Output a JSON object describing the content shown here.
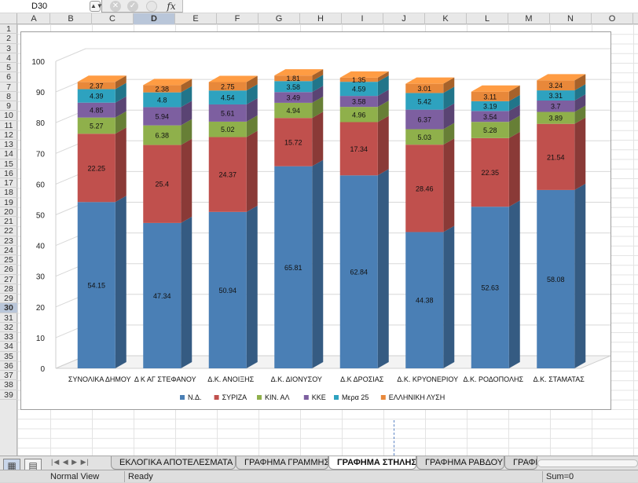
{
  "formula_bar": {
    "cell_ref": "D30",
    "fx_label": "fx",
    "cancel_icon": "x-circle-icon",
    "confirm_icon": "check-circle-icon",
    "formula_value": ""
  },
  "column_headers": [
    "A",
    "B",
    "C",
    "D",
    "E",
    "F",
    "G",
    "H",
    "I",
    "J",
    "K",
    "L",
    "M",
    "N",
    "O"
  ],
  "selected_column": "D",
  "selected_row": 30,
  "row_count": 39,
  "sheet_tabs": [
    {
      "label": "ΕΚΛΟΓΙΚΑ ΑΠΟΤΕΛΕΣΜΑΤΑ",
      "active": false
    },
    {
      "label": "ΓΡΑΦΗΜΑ ΓΡΑΜΜΗΣ",
      "active": false
    },
    {
      "label": "ΓΡΑΦΗΜΑ ΣΤΗΛΗΣ",
      "active": true
    },
    {
      "label": "ΓΡΑΦΗΜΑ ΡΑΒΔΟΥ",
      "active": false
    },
    {
      "label": "ΓΡΑΦΗ",
      "active": false
    }
  ],
  "tab_nav_glyphs": "|◀ ◀ ▶ ▶|",
  "status_bar": {
    "view": "Normal View",
    "state": "Ready",
    "sum": "Sum=0"
  },
  "chart_data": {
    "type": "bar",
    "stacked": true,
    "three_d": true,
    "categories": [
      "ΣΥΝΟΛΙΚΑ ΔΗΜΟΥ",
      "Δ Κ ΑΓ ΣΤΕΦΑΝΟΥ",
      "Δ.Κ. ΑΝΟΙΞΗΣ",
      "Δ.Κ. ΔΙΟΝΥΣΟΥ",
      "Δ.Κ ΔΡΟΣΙΑΣ",
      "Δ.Κ. ΚΡΥΟΝΕΡΙΟΥ",
      "Δ.Κ. ΡΟΔΟΠΟΛΗΣ",
      "Δ.Κ. ΣΤΑΜΑΤΑΣ"
    ],
    "series": [
      {
        "name": "Ν.Δ.",
        "color": "#4a7fb5",
        "values": [
          54.15,
          47.34,
          50.94,
          65.81,
          62.84,
          44.38,
          52.63,
          58.08
        ]
      },
      {
        "name": "ΣΥΡΙΖΑ",
        "color": "#c0504d",
        "values": [
          22.25,
          25.4,
          24.37,
          15.72,
          17.34,
          28.46,
          22.35,
          21.54
        ]
      },
      {
        "name": "ΚΙΝ. ΑΛ",
        "color": "#8fb04b",
        "values": [
          5.27,
          6.38,
          5.02,
          4.94,
          4.96,
          5.03,
          5.28,
          3.89
        ]
      },
      {
        "name": "ΚΚΕ",
        "color": "#7d5fa0",
        "values": [
          4.85,
          5.94,
          5.61,
          3.49,
          3.58,
          6.37,
          3.54,
          3.7
        ]
      },
      {
        "name": "Μερα 25",
        "color": "#2ea2bf",
        "values": [
          4.39,
          4.8,
          4.54,
          3.58,
          4.59,
          5.42,
          3.19,
          3.31
        ]
      },
      {
        "name": "ΕΛΛΗΝΙΚΗ ΛΥΣΗ",
        "color": "#e8883a",
        "values": [
          2.37,
          2.38,
          2.75,
          1.81,
          1.35,
          3.01,
          3.11,
          3.24
        ]
      }
    ],
    "ylim": [
      0,
      100
    ],
    "yticks": [
      0,
      10,
      20,
      30,
      40,
      50,
      60,
      70,
      80,
      90,
      100
    ],
    "legend_position": "bottom",
    "title": "",
    "xlabel": "",
    "ylabel": ""
  }
}
